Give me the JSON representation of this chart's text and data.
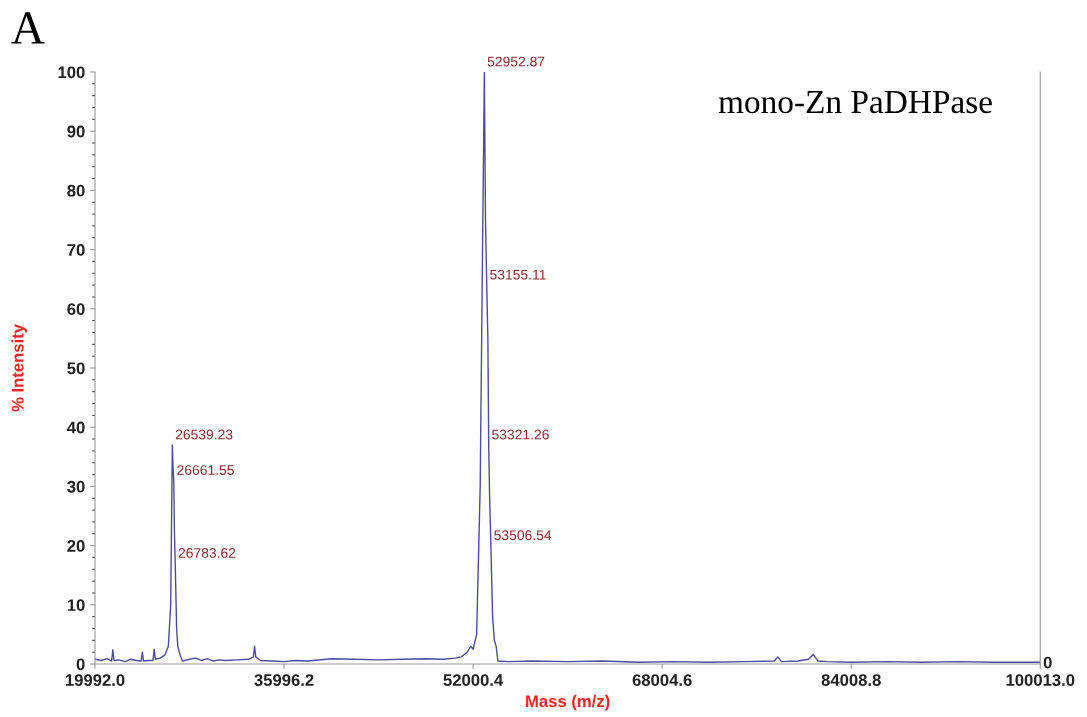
{
  "chart_data": {
    "type": "line",
    "xlabel": "Mass (m/z)",
    "ylabel": "% Intensity",
    "x": [
      19992,
      20500,
      21000,
      21400,
      21500,
      21600,
      22000,
      22500,
      23000,
      23500,
      23900,
      24000,
      24100,
      24500,
      24900,
      25000,
      25100,
      25500,
      25900,
      26200,
      26400,
      26539.23,
      26600,
      26661.55,
      26720,
      26783.62,
      26900,
      27000,
      27200,
      27400,
      28000,
      28500,
      29000,
      29500,
      30000,
      30500,
      31000,
      32000,
      33000,
      33400,
      33500,
      33600,
      34000,
      35000,
      36000,
      37000,
      38000,
      40000,
      42000,
      44000,
      46000,
      48000,
      49500,
      50500,
      51000,
      51500,
      51800,
      52000,
      52300,
      52600,
      52800,
      52952.87,
      53050,
      53155.11,
      53250,
      53321.26,
      53400,
      53506.54,
      53650,
      53800,
      53950,
      54100,
      55000,
      57000,
      60000,
      63000,
      66000,
      69000,
      72000,
      75000,
      77500,
      77800,
      78100,
      79500,
      80400,
      80800,
      81200,
      82000,
      84000,
      87000,
      90000,
      93000,
      96000,
      100013
    ],
    "series": [
      {
        "color": "#4b4ba0",
        "values": [
          0.8,
          0.6,
          0.9,
          0.5,
          2.4,
          0.6,
          0.7,
          0.4,
          0.8,
          0.6,
          0.5,
          2.0,
          0.5,
          0.6,
          0.6,
          2.5,
          0.8,
          1.0,
          1.5,
          3,
          10,
          37,
          33,
          31,
          22,
          17,
          6,
          3,
          1.5,
          0.5,
          0.8,
          1.0,
          0.6,
          0.9,
          0.5,
          0.7,
          0.6,
          0.7,
          0.8,
          1.2,
          3,
          1.2,
          0.6,
          0.5,
          0.4,
          0.6,
          0.5,
          0.9,
          0.8,
          0.7,
          0.8,
          0.9,
          0.8,
          1.0,
          1.2,
          2,
          3,
          2.5,
          5,
          30,
          70,
          100,
          75,
          64,
          55,
          37,
          28,
          20,
          8,
          4,
          3,
          0.5,
          0.4,
          0.5,
          0.4,
          0.5,
          0.3,
          0.4,
          0.3,
          0.4,
          0.5,
          1.2,
          0.4,
          0.5,
          0.8,
          1.6,
          0.5,
          0.4,
          0.3,
          0.4,
          0.3,
          0.4,
          0.3,
          0.3
        ]
      }
    ],
    "xlim": [
      19992,
      100013
    ],
    "xticks": [
      {
        "value": 19992,
        "label": "19992.0"
      },
      {
        "value": 35996.2,
        "label": "35996.2"
      },
      {
        "value": 52000.4,
        "label": "52000.4"
      },
      {
        "value": 68004.6,
        "label": "68004.6"
      },
      {
        "value": 84008.8,
        "label": "84008.8"
      },
      {
        "value": 100013,
        "label": "100013.0"
      }
    ],
    "ylim": [
      0,
      100
    ],
    "yticks": [
      0,
      10,
      20,
      30,
      40,
      50,
      60,
      70,
      80,
      90,
      100
    ],
    "grid": false,
    "marker": "none",
    "line_style": "solid",
    "annotations": [
      "A",
      "mono-Zn PaDHPase",
      "0",
      {
        "text": "52952.87",
        "x": 52952.87,
        "y": 100
      },
      {
        "text": "53155.11",
        "x": 53155.11,
        "y": 64
      },
      {
        "text": "53321.26",
        "x": 53321.26,
        "y": 37
      },
      {
        "text": "53506.54",
        "x": 53506.54,
        "y": 20
      },
      {
        "text": "26539.23",
        "x": 26539.23,
        "y": 37
      },
      {
        "text": "26661.55",
        "x": 26661.55,
        "y": 31
      },
      {
        "text": "26783.62",
        "x": 26783.62,
        "y": 17
      }
    ]
  }
}
